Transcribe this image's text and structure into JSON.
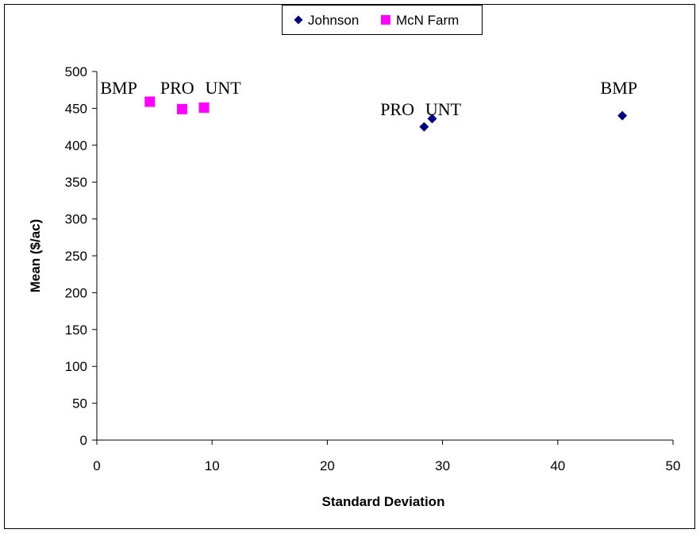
{
  "chart_data": {
    "type": "scatter",
    "title": "",
    "xlabel": "Standard Deviation",
    "ylabel": "Mean ($/ac)",
    "xlim": [
      0,
      50
    ],
    "ylim": [
      0,
      500
    ],
    "xticks": [
      0,
      10,
      20,
      30,
      40,
      50
    ],
    "yticks": [
      0,
      50,
      100,
      150,
      200,
      250,
      300,
      350,
      400,
      450,
      500
    ],
    "grid": false,
    "legend_position": "top",
    "series": [
      {
        "name": "Johnson",
        "marker": "diamond",
        "color": "#000080",
        "points": [
          {
            "x": 28.4,
            "y": 425
          },
          {
            "x": 29.1,
            "y": 436
          },
          {
            "x": 45.6,
            "y": 440
          }
        ]
      },
      {
        "name": "McN Farm",
        "marker": "square",
        "color": "#FF00FF",
        "points": [
          {
            "x": 4.6,
            "y": 459
          },
          {
            "x": 7.4,
            "y": 449
          },
          {
            "x": 9.3,
            "y": 451
          }
        ]
      }
    ],
    "annotations": [
      {
        "text": "BMP",
        "x": 0.3,
        "y": 470
      },
      {
        "text": "PRO",
        "x": 5.5,
        "y": 470
      },
      {
        "text": "UNT",
        "x": 9.4,
        "y": 470
      },
      {
        "text": "PRO",
        "x": 24.6,
        "y": 441
      },
      {
        "text": "UNT",
        "x": 28.5,
        "y": 441
      },
      {
        "text": "BMP",
        "x": 43.7,
        "y": 470
      }
    ]
  }
}
